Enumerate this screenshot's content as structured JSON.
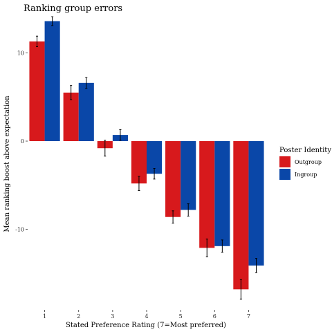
{
  "chart_data": {
    "type": "bar",
    "title": "Ranking group errors",
    "xlabel": "Stated Preference Rating (7=Most preferred)",
    "ylabel": "Mean ranking boost above expectation",
    "categories": [
      "1",
      "2",
      "3",
      "4",
      "5",
      "6",
      "7"
    ],
    "yticks": [
      10,
      0,
      -10
    ],
    "ytick_labels": [
      "10",
      "0",
      "-10"
    ],
    "ylim": [
      -18.5,
      13.8
    ],
    "grid": false,
    "legend": {
      "title": "Poster Identity",
      "placement": "right"
    },
    "series": [
      {
        "name": "Outgroup",
        "color": "#d7191c",
        "values": [
          11.3,
          5.5,
          -0.8,
          -4.8,
          -8.6,
          -12.1,
          -16.8
        ],
        "error": [
          0.6,
          0.8,
          0.9,
          0.8,
          0.7,
          1.0,
          1.1
        ]
      },
      {
        "name": "Ingroup",
        "color": "#0a47a8",
        "values": [
          13.6,
          6.6,
          0.7,
          -3.7,
          -7.8,
          -11.9,
          -14.1
        ],
        "error": [
          0.5,
          0.6,
          0.6,
          0.6,
          0.7,
          0.7,
          0.8
        ]
      }
    ]
  }
}
